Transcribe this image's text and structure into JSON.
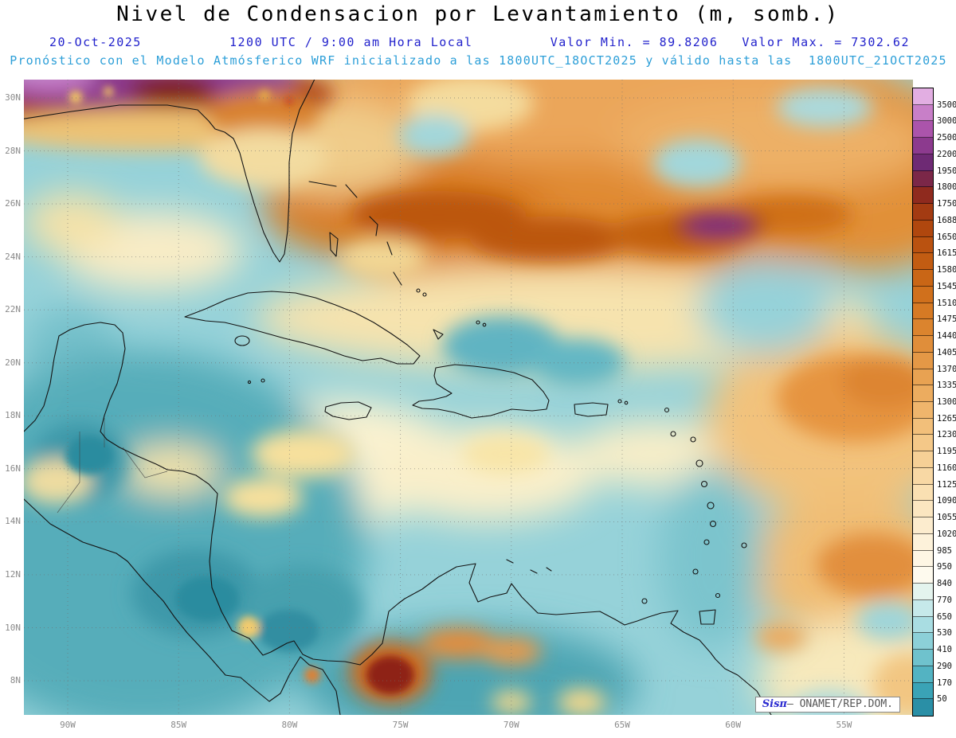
{
  "header": {
    "title": "Nivel de Condensacion por Levantamiento (m, somb.)",
    "date": "20-Oct-2025",
    "time": "1200 UTC / 9:00 am Hora Local",
    "valor_min": "Valor Min. = 89.8206",
    "valor_max": "Valor Max. = 7302.62",
    "forecast_line": "Pronóstico con el Modelo Atmósferico WRF inicializado a las 1800UTC_18OCT2025 y válido hasta las  1800UTC_21OCT2025"
  },
  "map": {
    "lat_labels": [
      "30N",
      "28N",
      "26N",
      "24N",
      "22N",
      "20N",
      "18N",
      "16N",
      "14N",
      "12N",
      "10N",
      "8N"
    ],
    "lon_labels": [
      "90W",
      "85W",
      "80W",
      "75W",
      "70W",
      "65W",
      "60W",
      "55W"
    ]
  },
  "colorbar": {
    "labels": [
      "3500",
      "3000",
      "2500",
      "2200",
      "1950",
      "1800",
      "1750",
      "1688",
      "1650",
      "1615",
      "1580",
      "1545",
      "1510",
      "1475",
      "1440",
      "1405",
      "1370",
      "1335",
      "1300",
      "1265",
      "1230",
      "1195",
      "1160",
      "1125",
      "1090",
      "1055",
      "1020",
      "985",
      "950",
      "840",
      "770",
      "650",
      "530",
      "410",
      "290",
      "170",
      "50"
    ],
    "colors": [
      "#e2aee2",
      "#c87fc8",
      "#ab54ab",
      "#8c3a8e",
      "#6e2a74",
      "#7b2748",
      "#8f2a1e",
      "#a33b12",
      "#b0470e",
      "#ba5210",
      "#c25c12",
      "#c96616",
      "#d0701c",
      "#d67a24",
      "#db842e",
      "#e08e3a",
      "#e49846",
      "#e8a252",
      "#ecac5f",
      "#efb56c",
      "#f2bf7a",
      "#f4c888",
      "#f6d096",
      "#f8d8a4",
      "#fae0b2",
      "#fbe6c0",
      "#fcecce",
      "#fdf2da",
      "#fef6e4",
      "#fefaee",
      "#e4f4ee",
      "#c6e9ea",
      "#a9dde2",
      "#8cd0d8",
      "#6fc2cd",
      "#53b3c2",
      "#3aa3b6",
      "#2a8fa6"
    ]
  },
  "watermark": {
    "brand": "Sisπ",
    "suffix": "– ONAMET/REP.DOM."
  },
  "chart_data": {
    "type": "heatmap",
    "title": "Nivel de Condensacion por Levantamiento (m, somb.)",
    "variable": "Nivel de Condensacion por Levantamiento (m)",
    "valid_time": "20-Oct-2025 1200 UTC / 9:00 am Hora Local",
    "model": "WRF",
    "initialized": "1800UTC_18OCT2025",
    "valid_until": "1800UTC_21OCT2025",
    "value_min": 89.8206,
    "value_max": 7302.62,
    "lat_ticks": [
      "8N",
      "10N",
      "12N",
      "14N",
      "16N",
      "18N",
      "20N",
      "22N",
      "24N",
      "26N",
      "28N",
      "30N"
    ],
    "lon_ticks": [
      "90W",
      "85W",
      "80W",
      "75W",
      "70W",
      "65W",
      "60W",
      "55W"
    ],
    "colorbar_levels": [
      50,
      170,
      290,
      410,
      530,
      650,
      770,
      840,
      950,
      985,
      1020,
      1055,
      1090,
      1125,
      1160,
      1195,
      1230,
      1265,
      1300,
      1335,
      1370,
      1405,
      1440,
      1475,
      1510,
      1545,
      1580,
      1615,
      1650,
      1688,
      1750,
      1800,
      1950,
      2200,
      2500,
      3000,
      3500
    ],
    "grid": true,
    "legend_position": "right"
  }
}
